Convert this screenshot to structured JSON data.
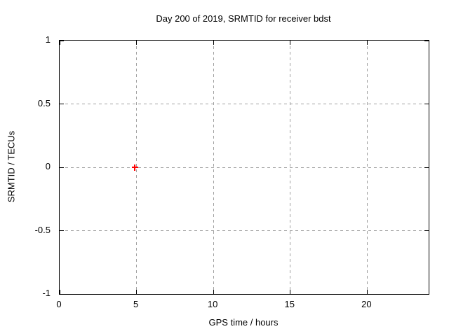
{
  "chart_data": {
    "type": "scatter",
    "title": "Day 200 of 2019, SRMTID for receiver bdst",
    "xlabel": "GPS time / hours",
    "ylabel": "SRMTID / TECUs",
    "xlim": [
      0,
      24
    ],
    "ylim": [
      -1,
      1
    ],
    "x_ticks": {
      "values": [
        0,
        5,
        10,
        15,
        20
      ],
      "labels": [
        "0",
        "5",
        "10",
        "15",
        "20"
      ]
    },
    "y_ticks": {
      "values": [
        1,
        0.5,
        0,
        -0.5,
        -1
      ],
      "labels": [
        "1",
        "0.5",
        "0",
        "-0.5",
        "-1"
      ]
    },
    "grid": true,
    "legend": "none",
    "series": [
      {
        "name": "SRMTID",
        "marker": "plus",
        "color": "#ff0000",
        "points": [
          {
            "x": 4.9,
            "y": 0
          }
        ]
      }
    ],
    "colors": {
      "grid": "#a0a0a0",
      "axis": "#000000",
      "background": "#ffffff",
      "marker": "#ff0000"
    }
  }
}
